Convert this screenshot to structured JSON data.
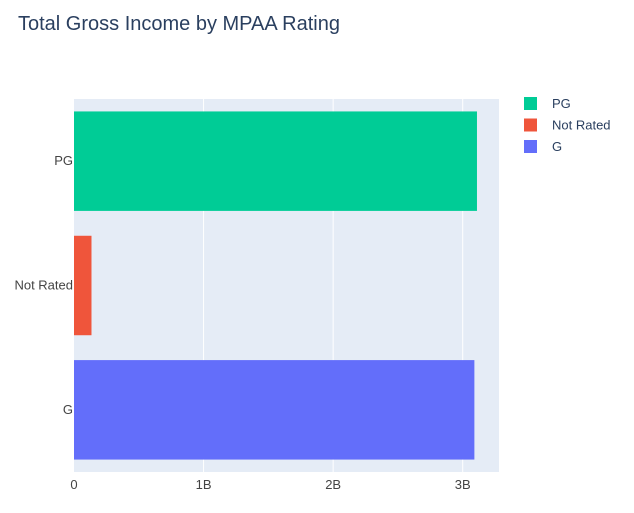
{
  "chart_data": {
    "type": "bar",
    "orientation": "horizontal",
    "title": "Total Gross Income by MPAA Rating",
    "xlabel": "",
    "ylabel": "",
    "categories": [
      "G",
      "Not Rated",
      "PG"
    ],
    "series": [
      {
        "name": "PG",
        "category": "PG",
        "value": 3110000000,
        "color": "#00cc96"
      },
      {
        "name": "Not Rated",
        "category": "Not Rated",
        "value": 135000000,
        "color": "#ef553b"
      },
      {
        "name": "G",
        "category": "G",
        "value": 3090000000,
        "color": "#636efa"
      }
    ],
    "xlim": [
      0,
      3280000000
    ],
    "xticks": [
      {
        "value": 0,
        "label": "0"
      },
      {
        "value": 1000000000,
        "label": "1B"
      },
      {
        "value": 2000000000,
        "label": "2B"
      },
      {
        "value": 3000000000,
        "label": "3B"
      }
    ],
    "grid": true,
    "legend": "top-right",
    "colors": {
      "plot_bg": "#e5ecf6",
      "grid": "#ffffff",
      "text": "#2a3f5f",
      "tick_text": "#444444"
    }
  }
}
